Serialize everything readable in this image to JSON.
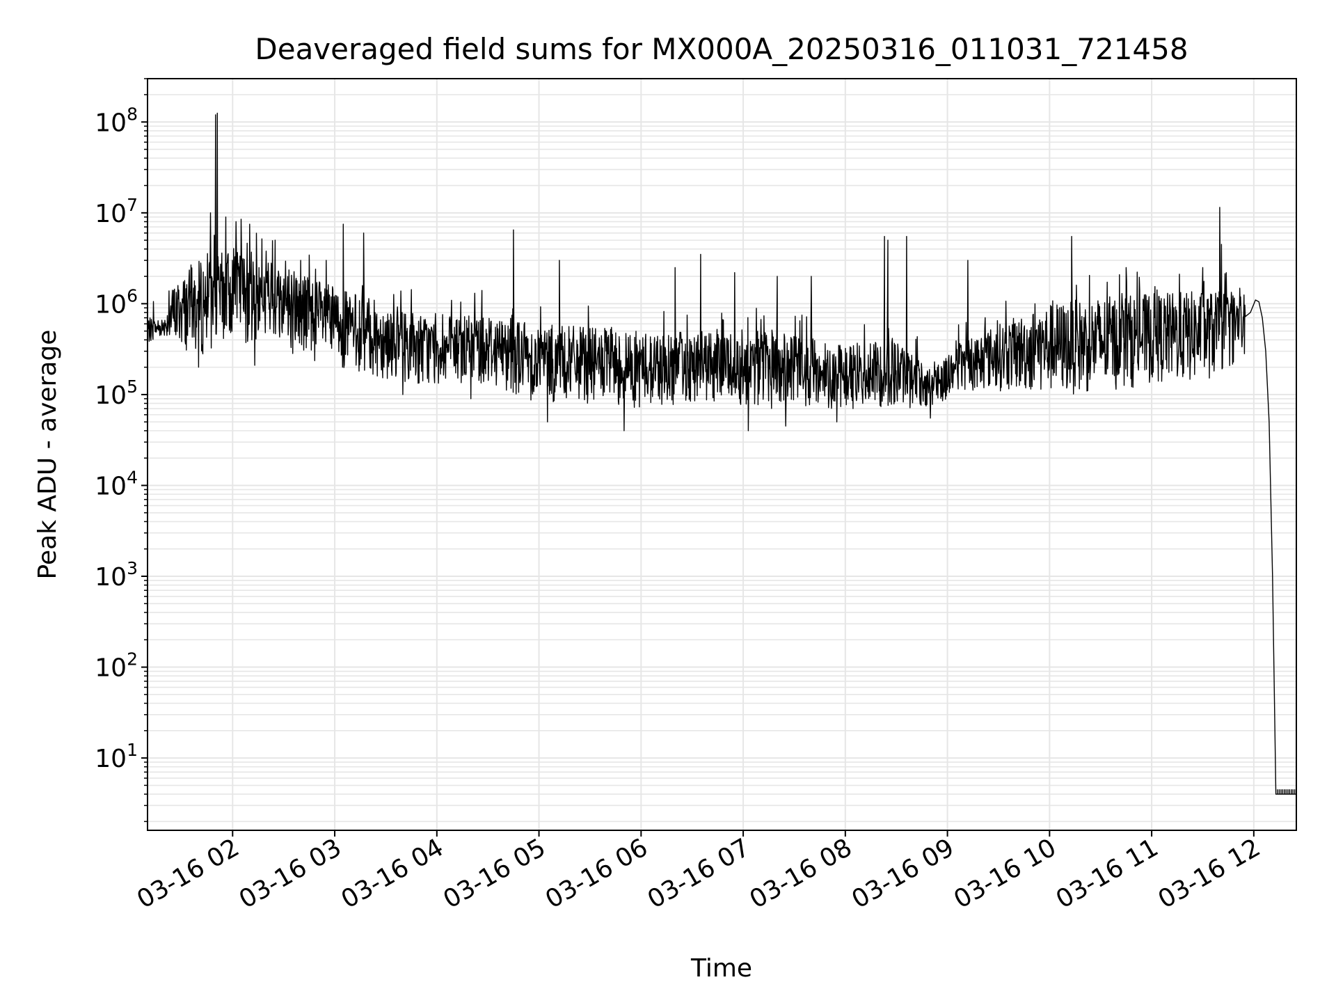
{
  "chart_data": {
    "type": "line",
    "title": "Deaveraged field sums for MX000A_20250316_011031_721458",
    "xlabel": "Time",
    "ylabel": "Peak ADU - average",
    "yscale": "log",
    "ylim": [
      1.6,
      300000000.0
    ],
    "xlim": [
      "2025-03-16T01:10:00",
      "2025-03-16T12:25:00"
    ],
    "x_ticks": [
      {
        "t": "2025-03-16T02:00:00",
        "label": "03-16 02"
      },
      {
        "t": "2025-03-16T03:00:00",
        "label": "03-16 03"
      },
      {
        "t": "2025-03-16T04:00:00",
        "label": "03-16 04"
      },
      {
        "t": "2025-03-16T05:00:00",
        "label": "03-16 05"
      },
      {
        "t": "2025-03-16T06:00:00",
        "label": "03-16 06"
      },
      {
        "t": "2025-03-16T07:00:00",
        "label": "03-16 07"
      },
      {
        "t": "2025-03-16T08:00:00",
        "label": "03-16 08"
      },
      {
        "t": "2025-03-16T09:00:00",
        "label": "03-16 09"
      },
      {
        "t": "2025-03-16T10:00:00",
        "label": "03-16 10"
      },
      {
        "t": "2025-03-16T11:00:00",
        "label": "03-16 11"
      },
      {
        "t": "2025-03-16T12:00:00",
        "label": "03-16 12"
      }
    ],
    "y_ticks": [
      {
        "value": 10,
        "base": "10",
        "exp": "1"
      },
      {
        "value": 100,
        "base": "10",
        "exp": "2"
      },
      {
        "value": 1000,
        "base": "10",
        "exp": "3"
      },
      {
        "value": 10000,
        "base": "10",
        "exp": "4"
      },
      {
        "value": 100000,
        "base": "10",
        "exp": "5"
      },
      {
        "value": 1000000,
        "base": "10",
        "exp": "6"
      },
      {
        "value": 10000000,
        "base": "10",
        "exp": "7"
      },
      {
        "value": 100000000,
        "base": "10",
        "exp": "8"
      }
    ],
    "grid": true,
    "line_color": "#000000",
    "grid_color": "#e6e6e6",
    "series": [
      {
        "envelope": [
          [
            "2025-03-16T01:10:00",
            350000.0,
            700000.0
          ],
          [
            "2025-03-16T01:20:00",
            450000.0,
            700000.0
          ],
          [
            "2025-03-16T01:25:00",
            350000.0,
            1600000.0
          ],
          [
            "2025-03-16T01:40:00",
            250000.0,
            3000000.0
          ],
          [
            "2025-03-16T02:00:00",
            400000.0,
            4000000.0
          ],
          [
            "2025-03-16T02:30:00",
            300000.0,
            3000000.0
          ],
          [
            "2025-03-16T03:00:00",
            200000.0,
            1500000.0
          ],
          [
            "2025-03-16T03:30:00",
            150000.0,
            1000000.0
          ],
          [
            "2025-03-16T04:00:00",
            120000.0,
            700000.0
          ],
          [
            "2025-03-16T04:30:00",
            130000.0,
            800000.0
          ],
          [
            "2025-03-16T05:00:00",
            80000.0,
            600000.0
          ],
          [
            "2025-03-16T05:30:00",
            80000.0,
            550000.0
          ],
          [
            "2025-03-16T06:00:00",
            70000.0,
            500000.0
          ],
          [
            "2025-03-16T06:30:00",
            80000.0,
            500000.0
          ],
          [
            "2025-03-16T07:00:00",
            70000.0,
            550000.0
          ],
          [
            "2025-03-16T07:30:00",
            70000.0,
            450000.0
          ],
          [
            "2025-03-16T08:00:00",
            70000.0,
            350000.0
          ],
          [
            "2025-03-16T08:30:00",
            70000.0,
            400000.0
          ],
          [
            "2025-03-16T08:50:00",
            70000.0,
            200000.0
          ],
          [
            "2025-03-16T09:10:00",
            110000.0,
            400000.0
          ],
          [
            "2025-03-16T09:30:00",
            110000.0,
            600000.0
          ],
          [
            "2025-03-16T10:00:00",
            100000.0,
            1000000.0
          ],
          [
            "2025-03-16T10:30:00",
            100000.0,
            1200000.0
          ],
          [
            "2025-03-16T11:00:00",
            130000.0,
            1300000.0
          ],
          [
            "2025-03-16T11:30:00",
            130000.0,
            1400000.0
          ],
          [
            "2025-03-16T11:55:00",
            250000.0,
            1300000.0
          ]
        ],
        "spikes": [
          [
            "2025-03-16T01:50:00",
            120000000.0
          ],
          [
            "2025-03-16T01:51:00",
            125000000.0
          ],
          [
            "2025-03-16T01:47:00",
            10000000.0
          ],
          [
            "2025-03-16T01:56:00",
            9000000.0
          ],
          [
            "2025-03-16T02:02:00",
            8000000.0
          ],
          [
            "2025-03-16T02:05:00",
            8500000.0
          ],
          [
            "2025-03-16T02:10:00",
            7500000.0
          ],
          [
            "2025-03-16T02:25:00",
            5000000.0
          ],
          [
            "2025-03-16T02:40:00",
            3000000.0
          ],
          [
            "2025-03-16T02:55:00",
            3000000.0
          ],
          [
            "2025-03-16T03:05:00",
            7500000.0
          ],
          [
            "2025-03-16T03:17:00",
            6000000.0
          ],
          [
            "2025-03-16T04:45:00",
            6500000.0
          ],
          [
            "2025-03-16T05:05:00",
            2800000.0
          ],
          [
            "2025-03-16T05:12:00",
            3000000.0
          ],
          [
            "2025-03-16T06:20:00",
            2500000.0
          ],
          [
            "2025-03-16T06:35:00",
            3500000.0
          ],
          [
            "2025-03-16T06:55:00",
            2200000.0
          ],
          [
            "2025-03-16T07:20:00",
            2000000.0
          ],
          [
            "2025-03-16T07:40:00",
            2000000.0
          ],
          [
            "2025-03-16T08:23:00",
            5500000.0
          ],
          [
            "2025-03-16T08:25:00",
            5000000.0
          ],
          [
            "2025-03-16T08:36:00",
            5500000.0
          ],
          [
            "2025-03-16T09:12:00",
            3000000.0
          ],
          [
            "2025-03-16T10:13:00",
            5500000.0
          ],
          [
            "2025-03-16T10:45:00",
            2500000.0
          ],
          [
            "2025-03-16T11:30:00",
            2500000.0
          ],
          [
            "2025-03-16T11:40:00",
            11500000.0
          ],
          [
            "2025-03-16T11:41:00",
            4500000.0
          ]
        ],
        "dips": [
          [
            "2025-03-16T01:40:00",
            200000.0
          ],
          [
            "2025-03-16T02:13:00",
            210000.0
          ],
          [
            "2025-03-16T03:25:00",
            160000.0
          ],
          [
            "2025-03-16T03:40:00",
            100000.0
          ],
          [
            "2025-03-16T04:20:00",
            90000.0
          ],
          [
            "2025-03-16T05:05:00",
            50000.0
          ],
          [
            "2025-03-16T05:50:00",
            40000.0
          ],
          [
            "2025-03-16T07:03:00",
            40000.0
          ],
          [
            "2025-03-16T07:25:00",
            45000.0
          ],
          [
            "2025-03-16T07:55:00",
            50000.0
          ],
          [
            "2025-03-16T08:50:00",
            55000.0
          ]
        ],
        "tail": [
          [
            "2025-03-16T11:58:00",
            800000.0
          ],
          [
            "2025-03-16T12:01:00",
            1100000.0
          ],
          [
            "2025-03-16T12:03:00",
            1050000.0
          ],
          [
            "2025-03-16T12:05:00",
            700000.0
          ],
          [
            "2025-03-16T12:07:00",
            300000.0
          ],
          [
            "2025-03-16T12:09:00",
            50000.0
          ],
          [
            "2025-03-16T12:11:00",
            1000.0
          ],
          [
            "2025-03-16T12:13:00",
            4.0
          ],
          [
            "2025-03-16T12:25:00",
            4.0
          ]
        ]
      }
    ]
  }
}
